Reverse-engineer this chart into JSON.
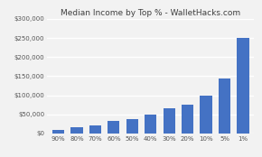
{
  "title": "Median Income by Top % - WalletHacks.com",
  "categories": [
    "90%",
    "80%",
    "70%",
    "60%",
    "50%",
    "40%",
    "30%",
    "20%",
    "10%",
    "5%",
    "1%"
  ],
  "values": [
    10000,
    17000,
    22000,
    32000,
    38000,
    50000,
    65000,
    75000,
    100000,
    145000,
    250000
  ],
  "bar_color": "#4472C4",
  "background_color": "#f2f2f2",
  "plot_bg_color": "#f2f2f2",
  "grid_color": "#ffffff",
  "ylim": [
    0,
    300000
  ],
  "yticks": [
    0,
    50000,
    100000,
    150000,
    200000,
    250000,
    300000
  ],
  "ytick_labels": [
    "$0",
    "$50,000",
    "$100,000",
    "$150,000",
    "$200,000",
    "$250,000",
    "$300,000"
  ],
  "title_fontsize": 6.5,
  "tick_fontsize": 5.0
}
